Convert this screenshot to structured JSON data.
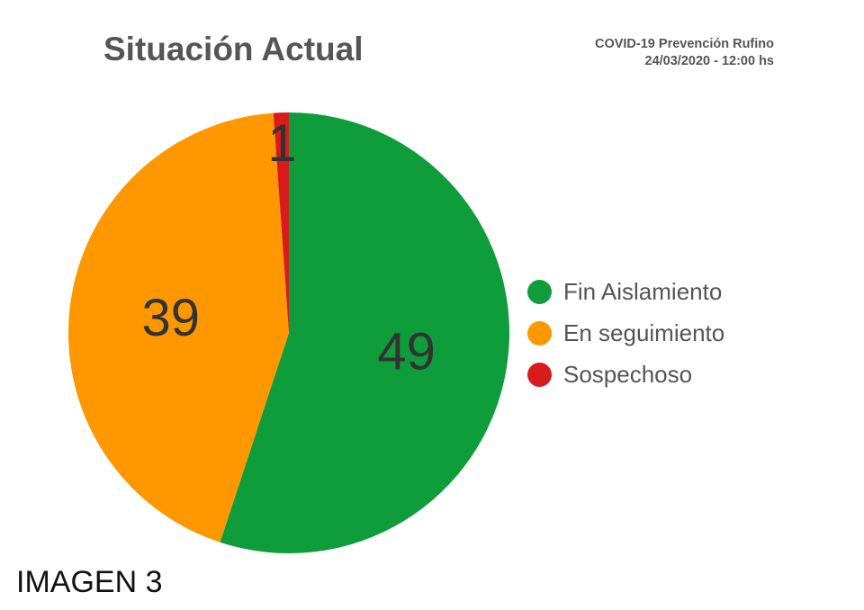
{
  "chart_data": {
    "type": "pie",
    "title": "Situación Actual",
    "subtitle": [
      "COVID-19 Prevención Rufino",
      "24/03/2020 - 12:00 hs"
    ],
    "categories": [
      "Fin Aislamiento",
      "En seguimiento",
      "Sospechoso"
    ],
    "values": [
      49,
      39,
      1
    ],
    "colors": [
      "#0f9d3c",
      "#ff9800",
      "#d81c1c"
    ],
    "data_labels": [
      "49",
      "39",
      "1"
    ],
    "legend_position": "right"
  },
  "caption": "IMAGEN 3"
}
